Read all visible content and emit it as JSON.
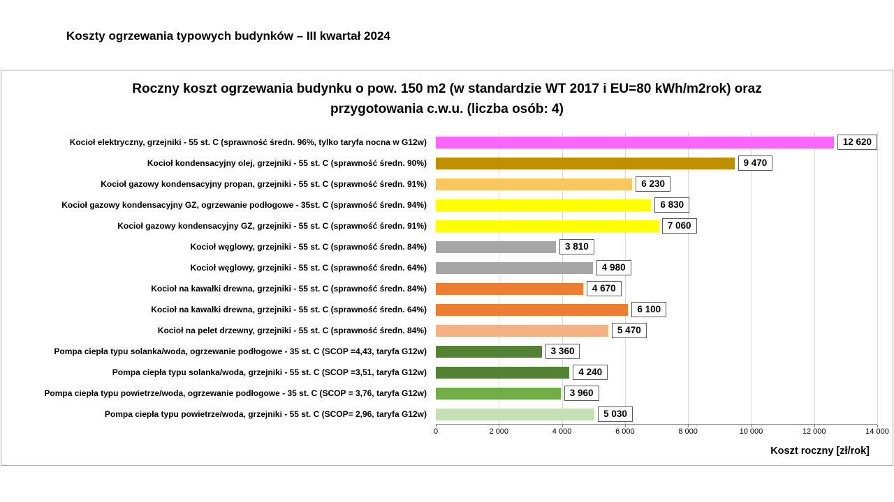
{
  "page": {
    "title": "Koszty ogrzewania typowych budynków – III kwartał 2024"
  },
  "chart_data": {
    "type": "bar",
    "orientation": "horizontal",
    "title": "Roczny koszt ogrzewania budynku  o pow. 150 m2 (w standardzie WT 2017 i EU=80 kWh/m2rok) oraz przygotowania c.w.u. (liczba osób: 4)",
    "title_lines": [
      "Roczny koszt ogrzewania budynku  o pow. 150 m2 (w standardzie WT 2017 i EU=80 kWh/m2rok) oraz",
      "przygotowania c.w.u. (liczba osób: 4)"
    ],
    "xlabel": "Koszt roczny [zł/rok]",
    "xlim": [
      0,
      14000
    ],
    "xticks": [
      0,
      2000,
      4000,
      6000,
      8000,
      10000,
      12000,
      14000
    ],
    "xtick_labels": [
      "0",
      "2 000",
      "4 000",
      "6 000",
      "8 000",
      "10 000",
      "12 000",
      "14 000"
    ],
    "grid": true,
    "legend": false,
    "colors": {
      "gridline": "#d9d9d9",
      "axis": "#808080"
    },
    "bars": [
      {
        "label": "Kocioł  elektryczny,  grzejniki - 55 st. C  (sprawność średn. 96%, tylko taryfa nocna w G12w)",
        "value": 12620,
        "value_label": "12 620",
        "color": "#FF66FF"
      },
      {
        "label": "Kocioł  kondensacyjny olej,  grzejniki - 55 st. C   (sprawność średn. 90%)",
        "value": 9470,
        "value_label": "9 470",
        "color": "#BF8F00"
      },
      {
        "label": "Kocioł gazowy kondensacyjny propan, grzejniki - 55 st. C  (sprawność średn. 91%)",
        "value": 6230,
        "value_label": "6 230",
        "color": "#FAC75F"
      },
      {
        "label": "Kocioł gazowy kondensacyjny GZ, ogrzewanie podłogowe - 35st. C   (sprawność średn. 94%)",
        "value": 6830,
        "value_label": "6 830",
        "color": "#FFFF00"
      },
      {
        "label": "Kocioł gazowy kondensacyjny GZ, grzejniki - 55 st. C   (sprawność średn. 91%)",
        "value": 7060,
        "value_label": "7 060",
        "color": "#FFFF00"
      },
      {
        "label": "Kocioł węglowy,  grzejniki - 55 st. C   (sprawność średn. 84%)",
        "value": 3810,
        "value_label": "3 810",
        "color": "#A6A6A6"
      },
      {
        "label": "Kocioł węglowy,  grzejniki - 55 st. C   (sprawność średn. 64%)",
        "value": 4980,
        "value_label": "4 980",
        "color": "#A6A6A6"
      },
      {
        "label": "Kocioł na kawałki drewna, grzejniki - 55 st. C  (sprawność średn. 84%)",
        "value": 4670,
        "value_label": "4 670",
        "color": "#ED7D31"
      },
      {
        "label": "Kocioł na kawałki drewna, grzejniki - 55 st. C  (sprawność średn. 64%)",
        "value": 6100,
        "value_label": "6 100",
        "color": "#ED7D31"
      },
      {
        "label": "Kocioł na pelet drzewny, grzejniki - 55 st. C (sprawność średn. 84%)",
        "value": 5470,
        "value_label": "5 470",
        "color": "#F4B183"
      },
      {
        "label": "Pompa ciepła typu solanka/woda, ogrzewanie podłogowe - 35 st. C  (SCOP =4,43, taryfa G12w)",
        "value": 3360,
        "value_label": "3 360",
        "color": "#548235"
      },
      {
        "label": "Pompa ciepła typu solanka/woda, grzejniki - 55 st. C (SCOP =3,51, taryfa G12w)",
        "value": 4240,
        "value_label": "4 240",
        "color": "#548235"
      },
      {
        "label": "Pompa ciepła typu powietrze/woda, ogrzewanie podłogowe - 35 st. C (SCOP = 3,76, taryfa G12w)",
        "value": 3960,
        "value_label": "3 960",
        "color": "#70AD47"
      },
      {
        "label": "Pompa ciepła typu powietrze/woda, grzejniki - 55 st. C (SCOP= 2,96, taryfa G12w)",
        "value": 5030,
        "value_label": "5 030",
        "color": "#C5E0B4"
      }
    ]
  }
}
